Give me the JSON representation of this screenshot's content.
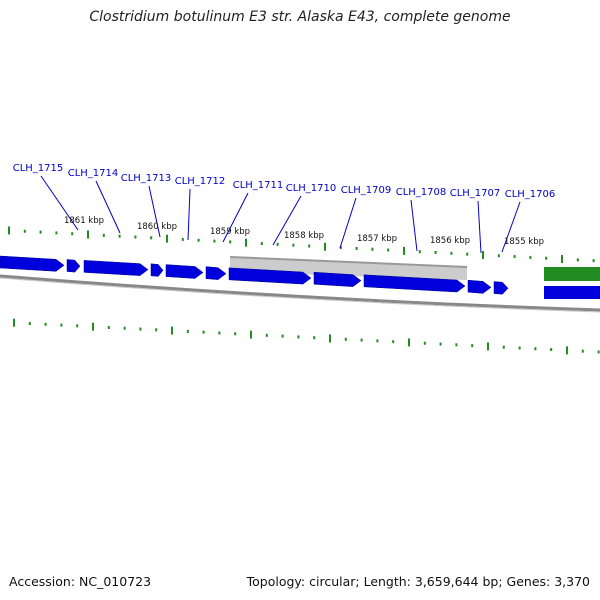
{
  "title": "Clostridium botulinum E3 str. Alaska E43, complete genome",
  "footer": {
    "accession": "Accession: NC_010723",
    "stats": "Topology: circular; Length: 3,659,644 bp; Genes: 3,370"
  },
  "colors": {
    "cds": "#0000dd",
    "rna": "#228b22",
    "ticks": "#228b22",
    "label": "#0000cc",
    "backbone": "#888888",
    "highlight": "#cccccc"
  },
  "genes": [
    "CLH_1715",
    "CLH_1714",
    "CLH_1713",
    "CLH_1712",
    "CLH_1711",
    "CLH_1710",
    "CLH_1709",
    "CLH_1708",
    "CLH_1707",
    "CLH_1706"
  ],
  "scale_labels": [
    "1861 kbp",
    "1860 kbp",
    "1859 kbp",
    "1858 kbp",
    "1857 kbp",
    "1856 kbp",
    "1855 kbp"
  ]
}
